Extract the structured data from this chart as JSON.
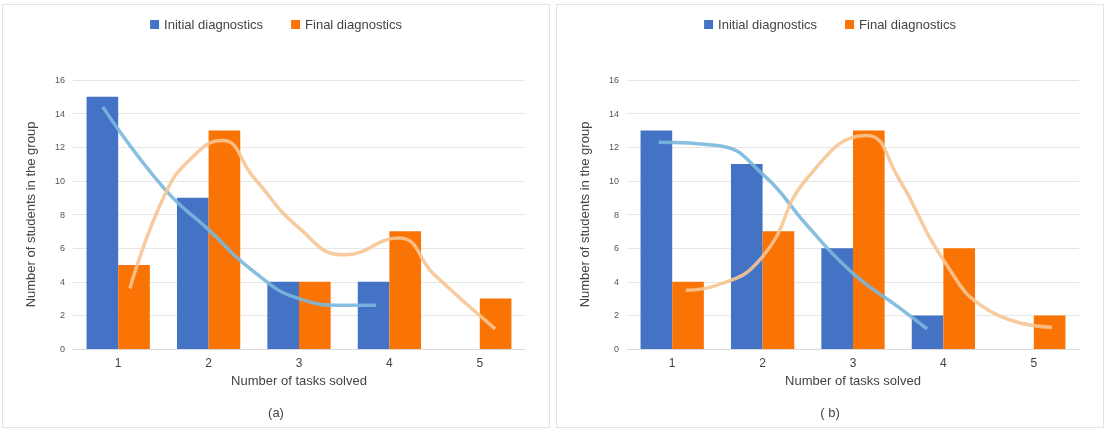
{
  "chart_data": [
    {
      "type": "bar",
      "xlabel": "Number of tasks solved",
      "ylabel": "Number of students in the group",
      "annotations": [
        "(a)"
      ],
      "x": [
        1,
        2,
        3,
        4,
        5
      ],
      "xlim": [
        0.5,
        5.5
      ],
      "xticks": [
        1,
        2,
        3,
        4,
        5
      ],
      "ylim": [
        0,
        16
      ],
      "yticks": [
        0,
        2,
        4,
        6,
        8,
        10,
        12,
        14,
        16
      ],
      "grid": "y",
      "legend": "top",
      "series": [
        {
          "name": "Initial diagnostics",
          "color": "#4472c4",
          "values": [
            15,
            9,
            4,
            4,
            null
          ]
        },
        {
          "name": "Final diagnostics",
          "color": "#fa7305",
          "values": [
            5,
            13,
            4,
            7,
            3
          ]
        },
        {
          "type": "line",
          "color": "#7ab8dd",
          "x": [
            0.83,
            1.5,
            2,
            2.5,
            3,
            3.5,
            3.85
          ],
          "values": [
            14.4,
            9.6,
            7.1,
            4.6,
            3.0,
            2.6,
            2.6
          ]
        },
        {
          "type": "line",
          "color": "#f7c593",
          "x": [
            1.13,
            1.5,
            1.8,
            2.15,
            2.5,
            3,
            3.5,
            4.1,
            4.5,
            5.17
          ],
          "values": [
            3.6,
            9.0,
            11.3,
            12.4,
            10.2,
            7.2,
            5.6,
            6.6,
            4.4,
            1.2
          ]
        }
      ]
    },
    {
      "type": "bar",
      "xlabel": "Number of tasks solved",
      "ylabel": "Number of students in the group",
      "annotations": [
        "( b)"
      ],
      "x": [
        1,
        2,
        3,
        4,
        5
      ],
      "xlim": [
        0.5,
        5.5
      ],
      "xticks": [
        1,
        2,
        3,
        4,
        5
      ],
      "ylim": [
        0,
        16
      ],
      "yticks": [
        0,
        2,
        4,
        6,
        8,
        10,
        12,
        14,
        16
      ],
      "grid": "y",
      "legend": "top",
      "series": [
        {
          "name": "Initial diagnostics",
          "color": "#4472c4",
          "values": [
            13,
            11,
            6,
            2,
            null
          ]
        },
        {
          "name": "Final diagnostics",
          "color": "#fa7305",
          "values": [
            4,
            7,
            13,
            6,
            2
          ]
        },
        {
          "type": "line",
          "color": "#7ab8dd",
          "x": [
            0.85,
            1.5,
            2,
            2.5,
            3,
            3.5,
            3.82
          ],
          "values": [
            12.3,
            12.1,
            10.4,
            7.3,
            4.5,
            2.5,
            1.2
          ]
        },
        {
          "type": "line",
          "color": "#f7c593",
          "x": [
            1.15,
            1.5,
            2,
            2.5,
            3.15,
            3.5,
            4,
            4.5,
            5.2
          ],
          "values": [
            3.5,
            3.8,
            5.5,
            10.2,
            12.7,
            10.2,
            5.3,
            2.3,
            1.3
          ]
        }
      ]
    }
  ]
}
